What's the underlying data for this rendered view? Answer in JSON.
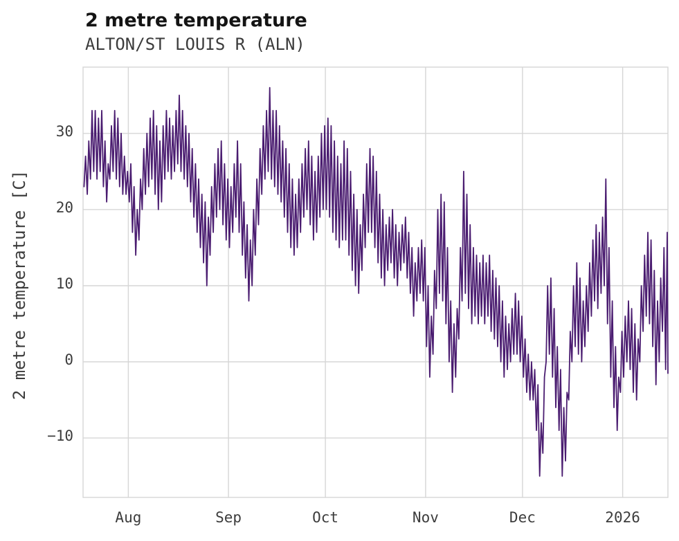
{
  "chart_data": {
    "type": "line",
    "title": "2 metre temperature",
    "subtitle": "ALTON/ST LOUIS R (ALN)",
    "ylabel": "2 metre temperature [C]",
    "units": "C",
    "line_color": "#4a1c70",
    "grid": true,
    "legend": "none",
    "ylim": [
      -17.8,
      38.7
    ],
    "total_days": 181,
    "x_start": "2025-07-18",
    "x_end": "2026-01-15",
    "end_value": -1.5,
    "y_ticks": [
      {
        "label": "−10",
        "value": -10
      },
      {
        "label": "0",
        "value": 0
      },
      {
        "label": "10",
        "value": 10
      },
      {
        "label": "20",
        "value": 20
      },
      {
        "label": "30",
        "value": 30
      }
    ],
    "x_ticks": [
      {
        "label": "Aug",
        "day": 14
      },
      {
        "label": "Sep",
        "day": 45
      },
      {
        "label": "Oct",
        "day": 75
      },
      {
        "label": "Nov",
        "day": 106
      },
      {
        "label": "Dec",
        "day": 136
      },
      {
        "label": "2026",
        "day": 167
      }
    ],
    "series": [
      {
        "name": "2 metre temperature",
        "sampling": "daily min/max envelope of hourly observations",
        "daily_min": [
          23,
          22,
          24,
          25,
          24,
          25,
          23,
          21,
          24,
          25,
          24,
          23,
          22,
          22,
          21,
          17,
          14,
          16,
          20,
          22,
          23,
          24,
          22,
          20,
          21,
          24,
          25,
          24,
          25,
          26,
          25,
          24,
          23,
          21,
          19,
          17,
          15,
          13,
          10,
          14,
          17,
          19,
          20,
          18,
          16,
          15,
          17,
          19,
          17,
          14,
          11,
          8,
          10,
          14,
          18,
          22,
          24,
          25,
          24,
          23,
          22,
          21,
          19,
          17,
          15,
          14,
          15,
          17,
          19,
          20,
          18,
          16,
          17,
          19,
          20,
          20,
          19,
          17,
          16,
          15,
          16,
          16,
          14,
          12,
          10,
          9,
          12,
          15,
          17,
          17,
          15,
          13,
          11,
          10,
          12,
          13,
          11,
          10,
          12,
          13,
          11,
          9,
          6,
          8,
          9,
          8,
          2,
          -2,
          1,
          7,
          9,
          8,
          5,
          0,
          -4,
          -2,
          3,
          8,
          9,
          7,
          5,
          6,
          5,
          6,
          5,
          6,
          4,
          3,
          2,
          0,
          -2,
          -1,
          0,
          1,
          1,
          0,
          -2,
          -4,
          -5,
          -5,
          -9,
          -15,
          -12,
          0,
          1,
          -2,
          -6,
          -9,
          -15,
          -13,
          -5,
          0,
          2,
          1,
          0,
          2,
          4,
          6,
          8,
          7,
          9,
          10,
          5,
          -2,
          -6,
          -9,
          -4,
          -2,
          0,
          -1,
          -4,
          -5,
          0,
          4,
          6,
          5,
          2,
          -3,
          0,
          4,
          -1
        ],
        "daily_max": [
          27,
          29,
          33,
          33,
          32,
          33,
          29,
          26,
          31,
          33,
          32,
          30,
          27,
          25,
          26,
          23,
          20,
          24,
          28,
          30,
          32,
          33,
          31,
          29,
          31,
          33,
          32,
          31,
          33,
          35,
          33,
          31,
          30,
          28,
          26,
          24,
          22,
          21,
          19,
          23,
          26,
          28,
          29,
          26,
          24,
          23,
          26,
          29,
          26,
          21,
          18,
          16,
          20,
          24,
          28,
          31,
          33,
          36,
          33,
          33,
          31,
          29,
          28,
          26,
          24,
          22,
          24,
          26,
          28,
          29,
          27,
          25,
          27,
          30,
          31,
          32,
          31,
          29,
          27,
          26,
          29,
          28,
          25,
          22,
          20,
          18,
          22,
          26,
          28,
          27,
          25,
          22,
          20,
          18,
          19,
          20,
          18,
          17,
          18,
          19,
          17,
          15,
          13,
          15,
          16,
          15,
          10,
          6,
          12,
          20,
          22,
          21,
          15,
          8,
          5,
          7,
          15,
          25,
          22,
          18,
          15,
          14,
          13,
          14,
          13,
          14,
          12,
          11,
          10,
          8,
          6,
          5,
          7,
          9,
          8,
          6,
          3,
          1,
          0,
          -1,
          -3,
          -8,
          -2,
          10,
          11,
          7,
          2,
          -1,
          -6,
          -4,
          4,
          10,
          13,
          11,
          8,
          10,
          13,
          16,
          18,
          17,
          19,
          24,
          15,
          8,
          2,
          -2,
          4,
          6,
          8,
          7,
          5,
          3,
          10,
          14,
          17,
          16,
          12,
          8,
          11,
          15,
          17
        ]
      }
    ]
  }
}
